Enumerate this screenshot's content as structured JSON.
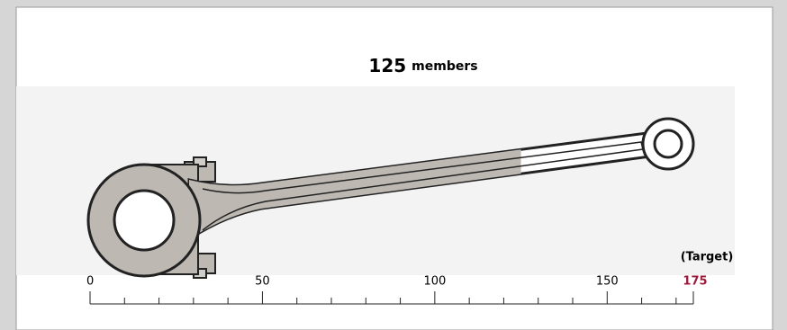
{
  "chart_data": {
    "type": "progress",
    "value": 125,
    "unit": "members",
    "target_label": "(Target)",
    "xlim": [
      0,
      175
    ],
    "xticks": [
      0,
      50,
      100,
      150,
      175
    ],
    "minor_ticks": [
      10,
      20,
      30,
      40,
      60,
      70,
      80,
      90,
      110,
      120,
      130,
      140,
      160,
      170
    ],
    "color": "#bdb8b2",
    "target_color": "#9b1b3a"
  }
}
